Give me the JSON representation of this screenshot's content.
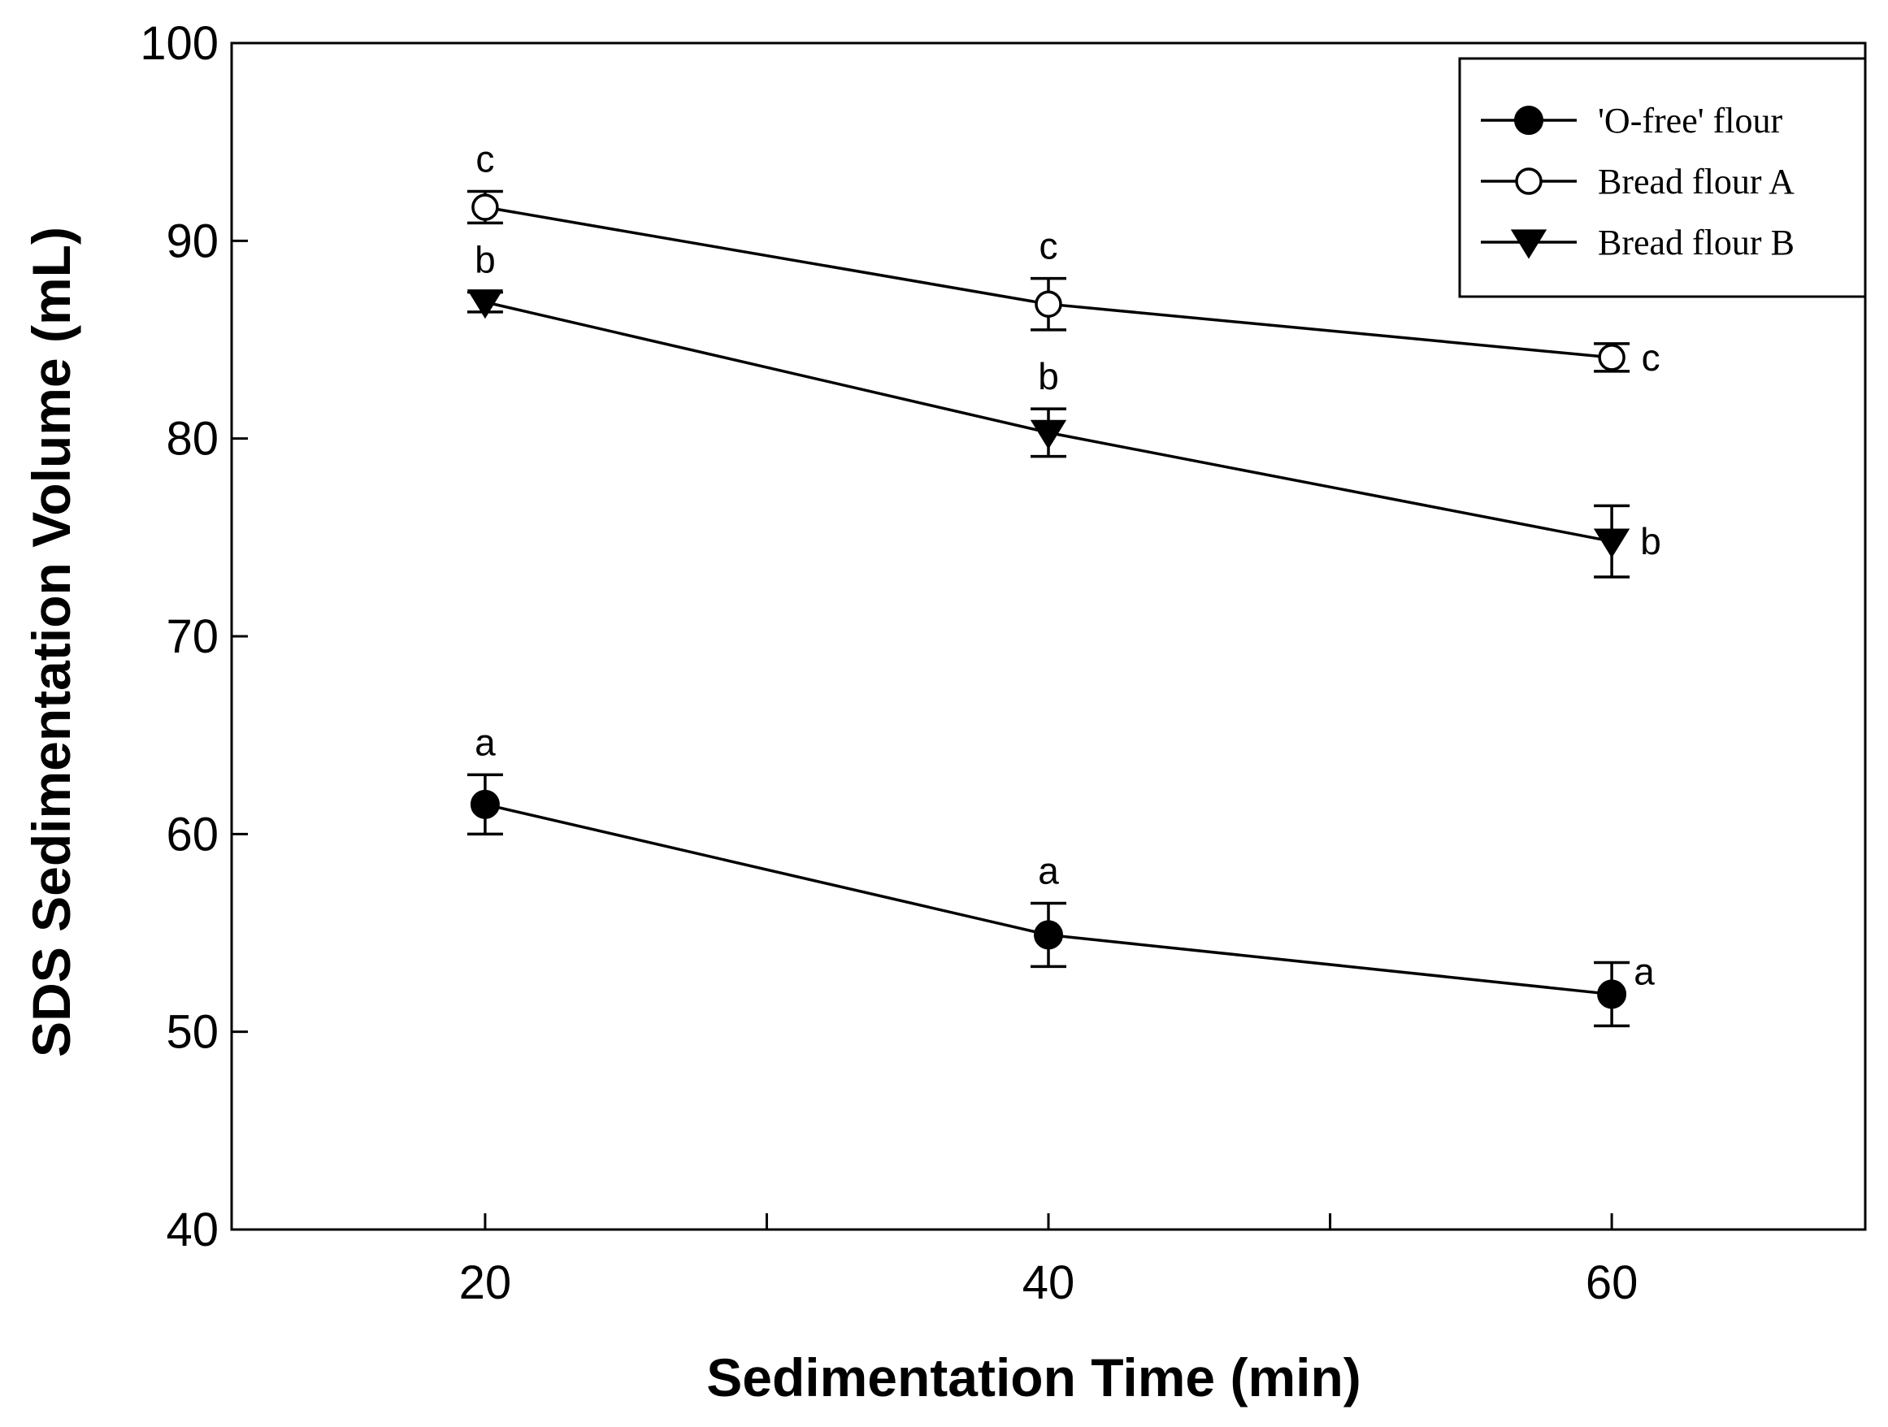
{
  "chart_data": {
    "type": "line",
    "xlabel": "Sedimentation Time (min)",
    "ylabel": "SDS Sedimentation Volume (mL)",
    "xlim": [
      11,
      69
    ],
    "ylim": [
      40,
      100
    ],
    "xticks": [
      20,
      40,
      60
    ],
    "xminor": [
      30,
      50
    ],
    "yticks": [
      40,
      50,
      60,
      70,
      80,
      90,
      100
    ],
    "legend_position": "top-right",
    "series": [
      {
        "name": "'O-free' flour",
        "marker": "filled-circle",
        "x": [
          20,
          40,
          60
        ],
        "values": [
          61.5,
          54.9,
          51.9
        ],
        "errors": [
          1.5,
          1.6,
          1.6
        ],
        "labels": [
          "a",
          "a",
          "a"
        ]
      },
      {
        "name": "Bread flour A",
        "marker": "open-circle",
        "x": [
          20,
          40,
          60
        ],
        "values": [
          91.7,
          86.8,
          84.1
        ],
        "errors": [
          0.8,
          1.3,
          0.7
        ],
        "labels": [
          "c",
          "c",
          "c"
        ]
      },
      {
        "name": "Bread flour B",
        "marker": "filled-triangle-down",
        "x": [
          20,
          40,
          60
        ],
        "values": [
          86.9,
          80.3,
          74.8
        ],
        "errors": [
          0.5,
          1.2,
          1.8
        ],
        "labels": [
          "b",
          "b",
          "b"
        ]
      }
    ]
  }
}
